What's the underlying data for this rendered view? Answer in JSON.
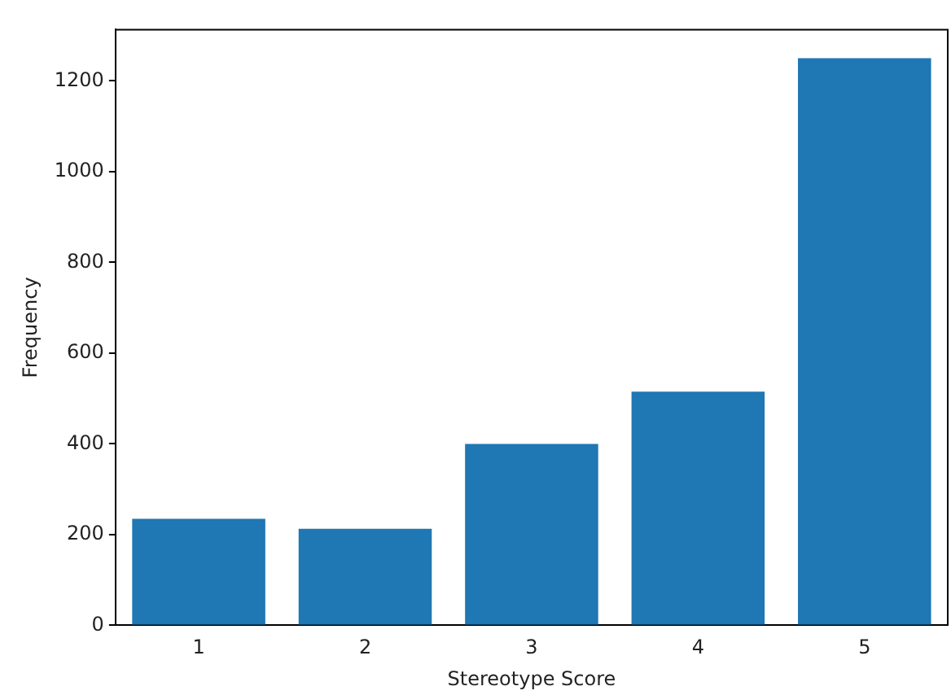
{
  "chart_data": {
    "type": "bar",
    "xlabel": "Stereotype Score",
    "ylabel": "Frequency",
    "categories": [
      "1",
      "2",
      "3",
      "4",
      "5"
    ],
    "values": [
      235,
      213,
      400,
      515,
      1250
    ],
    "color": "#1f77b4",
    "ylim": [
      0,
      1313
    ],
    "yticks": [
      0,
      200,
      400,
      600,
      800,
      1000,
      1200
    ],
    "grid": false,
    "legend": false
  }
}
